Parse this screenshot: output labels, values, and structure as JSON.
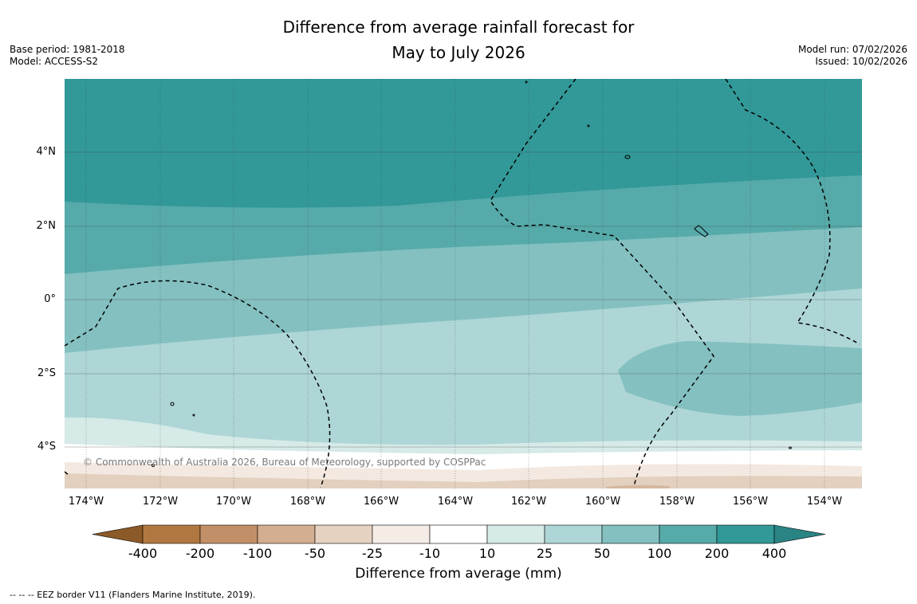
{
  "title": {
    "line1": "Difference from average rainfall forecast for",
    "line2": "May to July 2026"
  },
  "meta_left": {
    "base_period": "Base period: 1981-2018",
    "model": "Model: ACCESS-S2"
  },
  "meta_right": {
    "model_run": "Model run: 07/02/2026",
    "issued": "Issued: 10/02/2026"
  },
  "map": {
    "lat_labels": [
      "4°N",
      "2°N",
      "0°",
      "2°S",
      "4°S"
    ],
    "lon_labels": [
      "174°W",
      "172°W",
      "170°W",
      "168°W",
      "166°W",
      "164°W",
      "162°W",
      "160°W",
      "158°W",
      "156°W",
      "154°W"
    ],
    "copyright": "© Commonwealth of Australia 2026, Bureau of Meteorology, supported by COSPPac"
  },
  "colorbar": {
    "ticks": [
      "-400",
      "-200",
      "-100",
      "-50",
      "-25",
      "-10",
      "10",
      "25",
      "50",
      "100",
      "200",
      "400"
    ],
    "colors": [
      "#8c5a28",
      "#b07840",
      "#c29068",
      "#d4ae90",
      "#e6d2c0",
      "#f6ece6",
      "#ffffff",
      "#d6eae8",
      "#aed6d6",
      "#84c0c0",
      "#56aaaa",
      "#329898",
      "#2a8484"
    ],
    "title": "Difference from average (mm)"
  },
  "footnote": "--  --  -- EEZ border V11 (Flanders Marine Institute, 2019)."
}
